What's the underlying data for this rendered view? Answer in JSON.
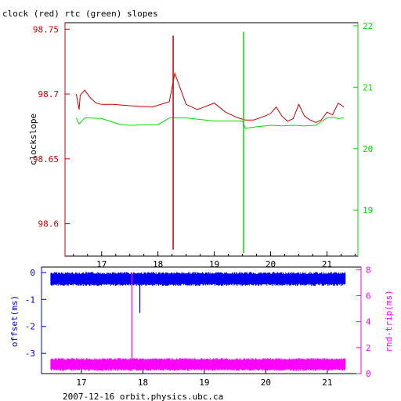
{
  "chart_data": [
    {
      "type": "line",
      "title": "clock (red) rtc (green) slopes",
      "ylabel": "clockslope",
      "xlim": [
        16.35,
        21.55
      ],
      "ylim_left": [
        98.575,
        98.755
      ],
      "ylim_right": [
        18.25,
        22.05
      ],
      "x_ticks": [
        17,
        18,
        19,
        20,
        21
      ],
      "left_ticks": [
        "98.75",
        "98.7",
        "98.65",
        "98.6"
      ],
      "left_tick_values": [
        98.75,
        98.7,
        98.65,
        98.6
      ],
      "right_ticks": [
        "22",
        "21",
        "20",
        "19"
      ],
      "right_tick_values": [
        22,
        21,
        20,
        19
      ],
      "colors": {
        "clock": "#cc0000",
        "rtc": "#00dd00",
        "left_axis": "#cc0000",
        "right_axis": "#00dd00",
        "frame": "#000000"
      },
      "series": [
        {
          "key": "clock",
          "axis": "left",
          "x": [
            16.55,
            16.6,
            16.62,
            16.7,
            16.8,
            16.9,
            17.0,
            17.2,
            17.5,
            17.9,
            18.2,
            18.3,
            18.5,
            18.7,
            19.0,
            19.2,
            19.4,
            19.55,
            19.7,
            19.9,
            20.0,
            20.1,
            20.2,
            20.3,
            20.4,
            20.5,
            20.6,
            20.7,
            20.8,
            20.9,
            21.0,
            21.1,
            21.2,
            21.3
          ],
          "y": [
            98.7,
            98.688,
            98.699,
            98.703,
            98.697,
            98.693,
            98.692,
            98.692,
            98.691,
            98.69,
            98.694,
            98.716,
            98.692,
            98.688,
            98.693,
            98.686,
            98.682,
            98.68,
            98.68,
            98.683,
            98.685,
            98.69,
            98.683,
            98.679,
            98.681,
            98.692,
            98.683,
            98.68,
            98.678,
            98.68,
            98.686,
            98.684,
            98.693,
            98.69
          ]
        },
        {
          "key": "rtc",
          "axis": "right",
          "x": [
            16.55,
            16.6,
            16.7,
            16.8,
            17.0,
            17.3,
            17.5,
            17.8,
            18.0,
            18.2,
            18.3,
            18.5,
            18.7,
            19.0,
            19.3,
            19.5,
            19.55,
            19.7,
            19.9,
            20.0,
            20.2,
            20.4,
            20.6,
            20.8,
            21.0,
            21.1,
            21.2,
            21.3
          ],
          "y": [
            20.5,
            20.4,
            20.5,
            20.5,
            20.49,
            20.4,
            20.38,
            20.39,
            20.39,
            20.5,
            20.5,
            20.5,
            20.48,
            20.45,
            20.45,
            20.45,
            20.33,
            20.35,
            20.37,
            20.38,
            20.37,
            20.38,
            20.37,
            20.38,
            20.5,
            20.51,
            20.49,
            20.5
          ]
        }
      ],
      "spikes": [
        {
          "series": "clock",
          "x": 18.27,
          "y1": 98.58,
          "y2": 98.745
        },
        {
          "series": "rtc",
          "x": 19.52,
          "y1": 18.3,
          "y2": 21.9
        }
      ]
    },
    {
      "type": "line",
      "xlim": [
        16.35,
        21.55
      ],
      "ylim_left": [
        -3.75,
        0.2
      ],
      "ylim_right": [
        0,
        8.2
      ],
      "x_ticks": [
        17,
        18,
        19,
        20,
        21
      ],
      "xlabel": "2007-12-16 orbit.physics.ubc.ca",
      "left_label": "offset(ms)",
      "right_label": "rnd-trip(ms)",
      "left_ticks": [
        "0",
        "-1",
        "-2",
        "-3"
      ],
      "left_tick_values": [
        0,
        -1,
        -2,
        -3
      ],
      "right_ticks": [
        "8",
        "6",
        "4",
        "2",
        "0"
      ],
      "right_tick_values": [
        8,
        6,
        4,
        2,
        0
      ],
      "colors": {
        "offset": "#0000ee",
        "roundtrip": "#ff00ff",
        "left_axis": "#0000ee",
        "right_axis": "#ff00ff",
        "frame": "#000000"
      },
      "series": [
        {
          "key": "offset",
          "axis": "left",
          "x_start": 16.5,
          "x_end": 21.3,
          "band": [
            -0.5,
            0.02
          ]
        },
        {
          "key": "roundtrip",
          "axis": "right",
          "x_start": 16.5,
          "x_end": 21.3,
          "band": [
            0.2,
            1.2
          ]
        }
      ],
      "spikes": [
        {
          "series": "roundtrip",
          "x": 17.82,
          "y1": 0.2,
          "y2": 7.8
        },
        {
          "series": "offset",
          "x": 17.95,
          "y1": -0.2,
          "y2": -1.5
        }
      ]
    }
  ]
}
